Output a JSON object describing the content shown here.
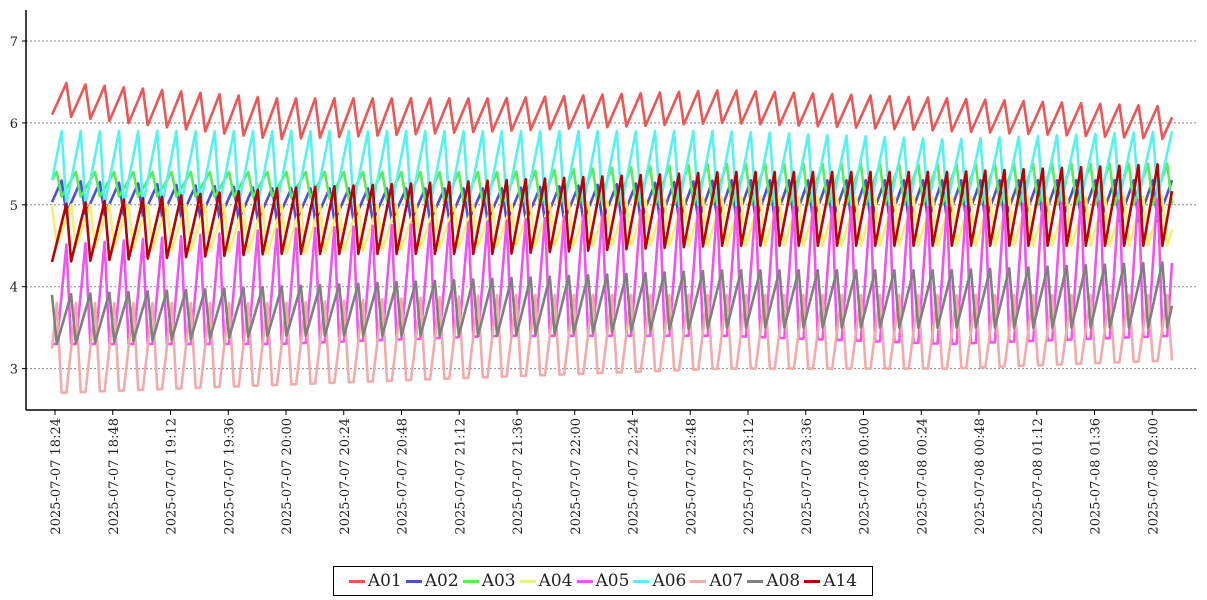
{
  "chart_data": {
    "type": "line",
    "title": "",
    "xlabel": "",
    "ylabel": "",
    "ylim": [
      2.5,
      7.4
    ],
    "grid": "horizontal-dotted",
    "legend_position": "bottom-center",
    "y_ticks": [
      "3",
      "4",
      "5",
      "6",
      "7"
    ],
    "x_tick_labels": [
      "2025-07-07 18:24",
      "2025-07-07 18:48",
      "2025-07-07 19:12",
      "2025-07-07 19:36",
      "2025-07-07 20:00",
      "2025-07-07 20:24",
      "2025-07-07 20:48",
      "2025-07-07 21:12",
      "2025-07-07 21:36",
      "2025-07-07 22:00",
      "2025-07-07 22:24",
      "2025-07-07 22:48",
      "2025-07-07 23:12",
      "2025-07-07 23:36",
      "2025-07-08 00:00",
      "2025-07-08 00:24",
      "2025-07-08 00:48",
      "2025-07-08 01:12",
      "2025-07-08 01:36",
      "2025-07-08 02:00"
    ],
    "x_start": "2025-07-07 18:24",
    "x_end": "2025-07-08 02:12",
    "sample_interval_minutes": 2,
    "cycle_minutes": 8,
    "series": [
      {
        "name": "A01",
        "color": "#ee5555",
        "min": [
          6.1,
          5.8,
          5.9,
          6.0,
          5.9,
          5.8
        ],
        "max": [
          6.5,
          6.3,
          6.3,
          6.4,
          6.3,
          6.2
        ]
      },
      {
        "name": "A02",
        "color": "#4c4cdd",
        "min": [
          4.9,
          4.8,
          4.8,
          4.8,
          4.8,
          4.8
        ],
        "max": [
          5.3,
          5.2,
          5.2,
          5.3,
          5.3,
          5.3
        ]
      },
      {
        "name": "A03",
        "color": "#55ee55",
        "min": [
          5.1,
          5.1,
          5.0,
          5.0,
          5.0,
          5.0
        ],
        "max": [
          5.4,
          5.4,
          5.4,
          5.5,
          5.5,
          5.5
        ]
      },
      {
        "name": "A04",
        "color": "#f2f270",
        "min": [
          4.5,
          4.4,
          4.5,
          4.5,
          4.5,
          4.5
        ],
        "max": [
          5.0,
          5.0,
          5.0,
          5.1,
          5.1,
          5.1
        ]
      },
      {
        "name": "A05",
        "color": "#f252f2",
        "min": [
          3.3,
          3.3,
          3.4,
          3.4,
          3.3,
          3.4
        ],
        "max": [
          4.5,
          4.7,
          4.8,
          5.0,
          5.0,
          5.2
        ]
      },
      {
        "name": "A06",
        "color": "#55f2f2",
        "min": [
          5.0,
          5.0,
          5.0,
          5.0,
          5.0,
          5.1
        ],
        "max": [
          5.9,
          5.9,
          5.9,
          5.9,
          5.8,
          5.9
        ]
      },
      {
        "name": "A07",
        "color": "#f5aaaa",
        "min": [
          2.7,
          2.8,
          2.9,
          3.0,
          3.0,
          3.1
        ],
        "max": [
          3.8,
          3.8,
          3.9,
          3.9,
          3.9,
          3.9
        ]
      },
      {
        "name": "A08",
        "color": "#808080",
        "min": [
          3.3,
          3.4,
          3.4,
          3.5,
          3.5,
          3.5
        ],
        "max": [
          3.9,
          4.0,
          4.1,
          4.2,
          4.2,
          4.3
        ]
      },
      {
        "name": "A14",
        "color": "#bb0000",
        "min": [
          4.3,
          4.4,
          4.4,
          4.5,
          4.5,
          4.5
        ],
        "max": [
          5.0,
          5.2,
          5.3,
          5.4,
          5.4,
          5.5
        ]
      }
    ]
  }
}
